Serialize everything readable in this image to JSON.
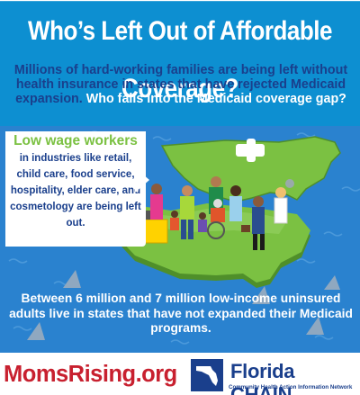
{
  "header": {
    "title": "Who’s Left Out of Affordable Coverage?",
    "intro_part1": "Millions of hard-working families are being left without health insurance in states that have rejected Medicaid expansion.",
    "intro_part2": "Who falls into the Medicaid coverage gap?"
  },
  "callout": {
    "heading": "Low wage workers",
    "body": "in industries like retail, child care, food service, hospitality, elder care, and cosmetology are being left out."
  },
  "statistic": "Between 6 million and 7 million low-income uninsured adults live in states that have not expanded their Medicaid programs.",
  "footer": {
    "moms_rising": "MomsRising.org",
    "chain_name": "Florida CHAIN",
    "chain_subtitle": "Community Health Action Information Network"
  },
  "colors": {
    "title_bg": "#0d8fd1",
    "sea": "#2a82cf",
    "map_green": "#7bc142",
    "map_dark": "#4f8f2a",
    "navy": "#1a3f8c",
    "callout_green": "#7bc142",
    "moms_red": "#c8202f"
  },
  "icons": [
    "us-map",
    "medical-cross-icon",
    "florida-map",
    "shark-fin-icon",
    "people-illustration",
    "florida-chain-logo"
  ]
}
